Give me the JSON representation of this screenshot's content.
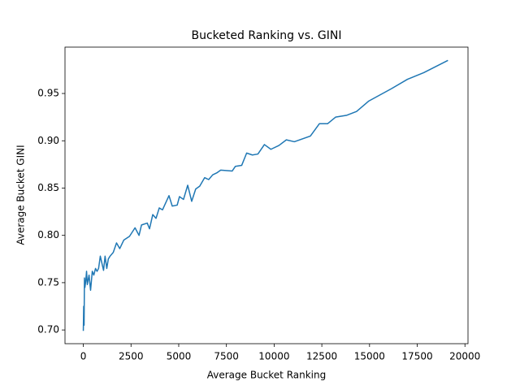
{
  "chart_data": {
    "type": "line",
    "title": "Bucketed Ranking vs. GINI",
    "xlabel": "Average Bucket Ranking",
    "ylabel": "Average Bucket GINI",
    "x": [
      0,
      20,
      40,
      60,
      85,
      130,
      170,
      210,
      300,
      380,
      470,
      550,
      640,
      720,
      800,
      890,
      1060,
      1140,
      1230,
      1310,
      1400,
      1570,
      1740,
      1910,
      2120,
      2420,
      2710,
      2920,
      3050,
      3350,
      3470,
      3640,
      3810,
      3980,
      4150,
      4490,
      4660,
      4920,
      5040,
      5250,
      5470,
      5680,
      5890,
      6100,
      6360,
      6570,
      6780,
      6990,
      7200,
      7800,
      7970,
      8300,
      8560,
      8860,
      9150,
      9490,
      9830,
      10250,
      10640,
      11060,
      11900,
      12370,
      12800,
      13220,
      13810,
      14320,
      14960,
      16140,
      16990,
      17840,
      19110
    ],
    "series": [
      {
        "name": "gini",
        "color": "#1f77b4",
        "values": [
          0.699,
          0.725,
          0.705,
          0.755,
          0.745,
          0.752,
          0.762,
          0.748,
          0.758,
          0.742,
          0.762,
          0.758,
          0.765,
          0.762,
          0.765,
          0.778,
          0.763,
          0.778,
          0.765,
          0.775,
          0.778,
          0.782,
          0.792,
          0.786,
          0.795,
          0.799,
          0.808,
          0.8,
          0.811,
          0.813,
          0.807,
          0.822,
          0.818,
          0.829,
          0.827,
          0.842,
          0.831,
          0.832,
          0.841,
          0.838,
          0.853,
          0.836,
          0.849,
          0.852,
          0.861,
          0.859,
          0.864,
          0.866,
          0.869,
          0.868,
          0.873,
          0.874,
          0.887,
          0.885,
          0.886,
          0.896,
          0.891,
          0.895,
          0.901,
          0.899,
          0.905,
          0.918,
          0.918,
          0.925,
          0.927,
          0.931,
          0.942,
          0.955,
          0.965,
          0.972,
          0.985
        ]
      }
    ],
    "xlim": [
      -960,
      20160
    ],
    "ylim": [
      0.6855,
      0.999
    ],
    "xticks": [
      0,
      2500,
      5000,
      7500,
      10000,
      12500,
      15000,
      17500,
      20000
    ],
    "yticks": [
      {
        "value": 0.7,
        "label": "0.70"
      },
      0.75,
      {
        "value": 0.8,
        "label": "0.80"
      },
      0.85,
      {
        "value": 0.9,
        "label": "0.90"
      },
      0.95
    ]
  }
}
